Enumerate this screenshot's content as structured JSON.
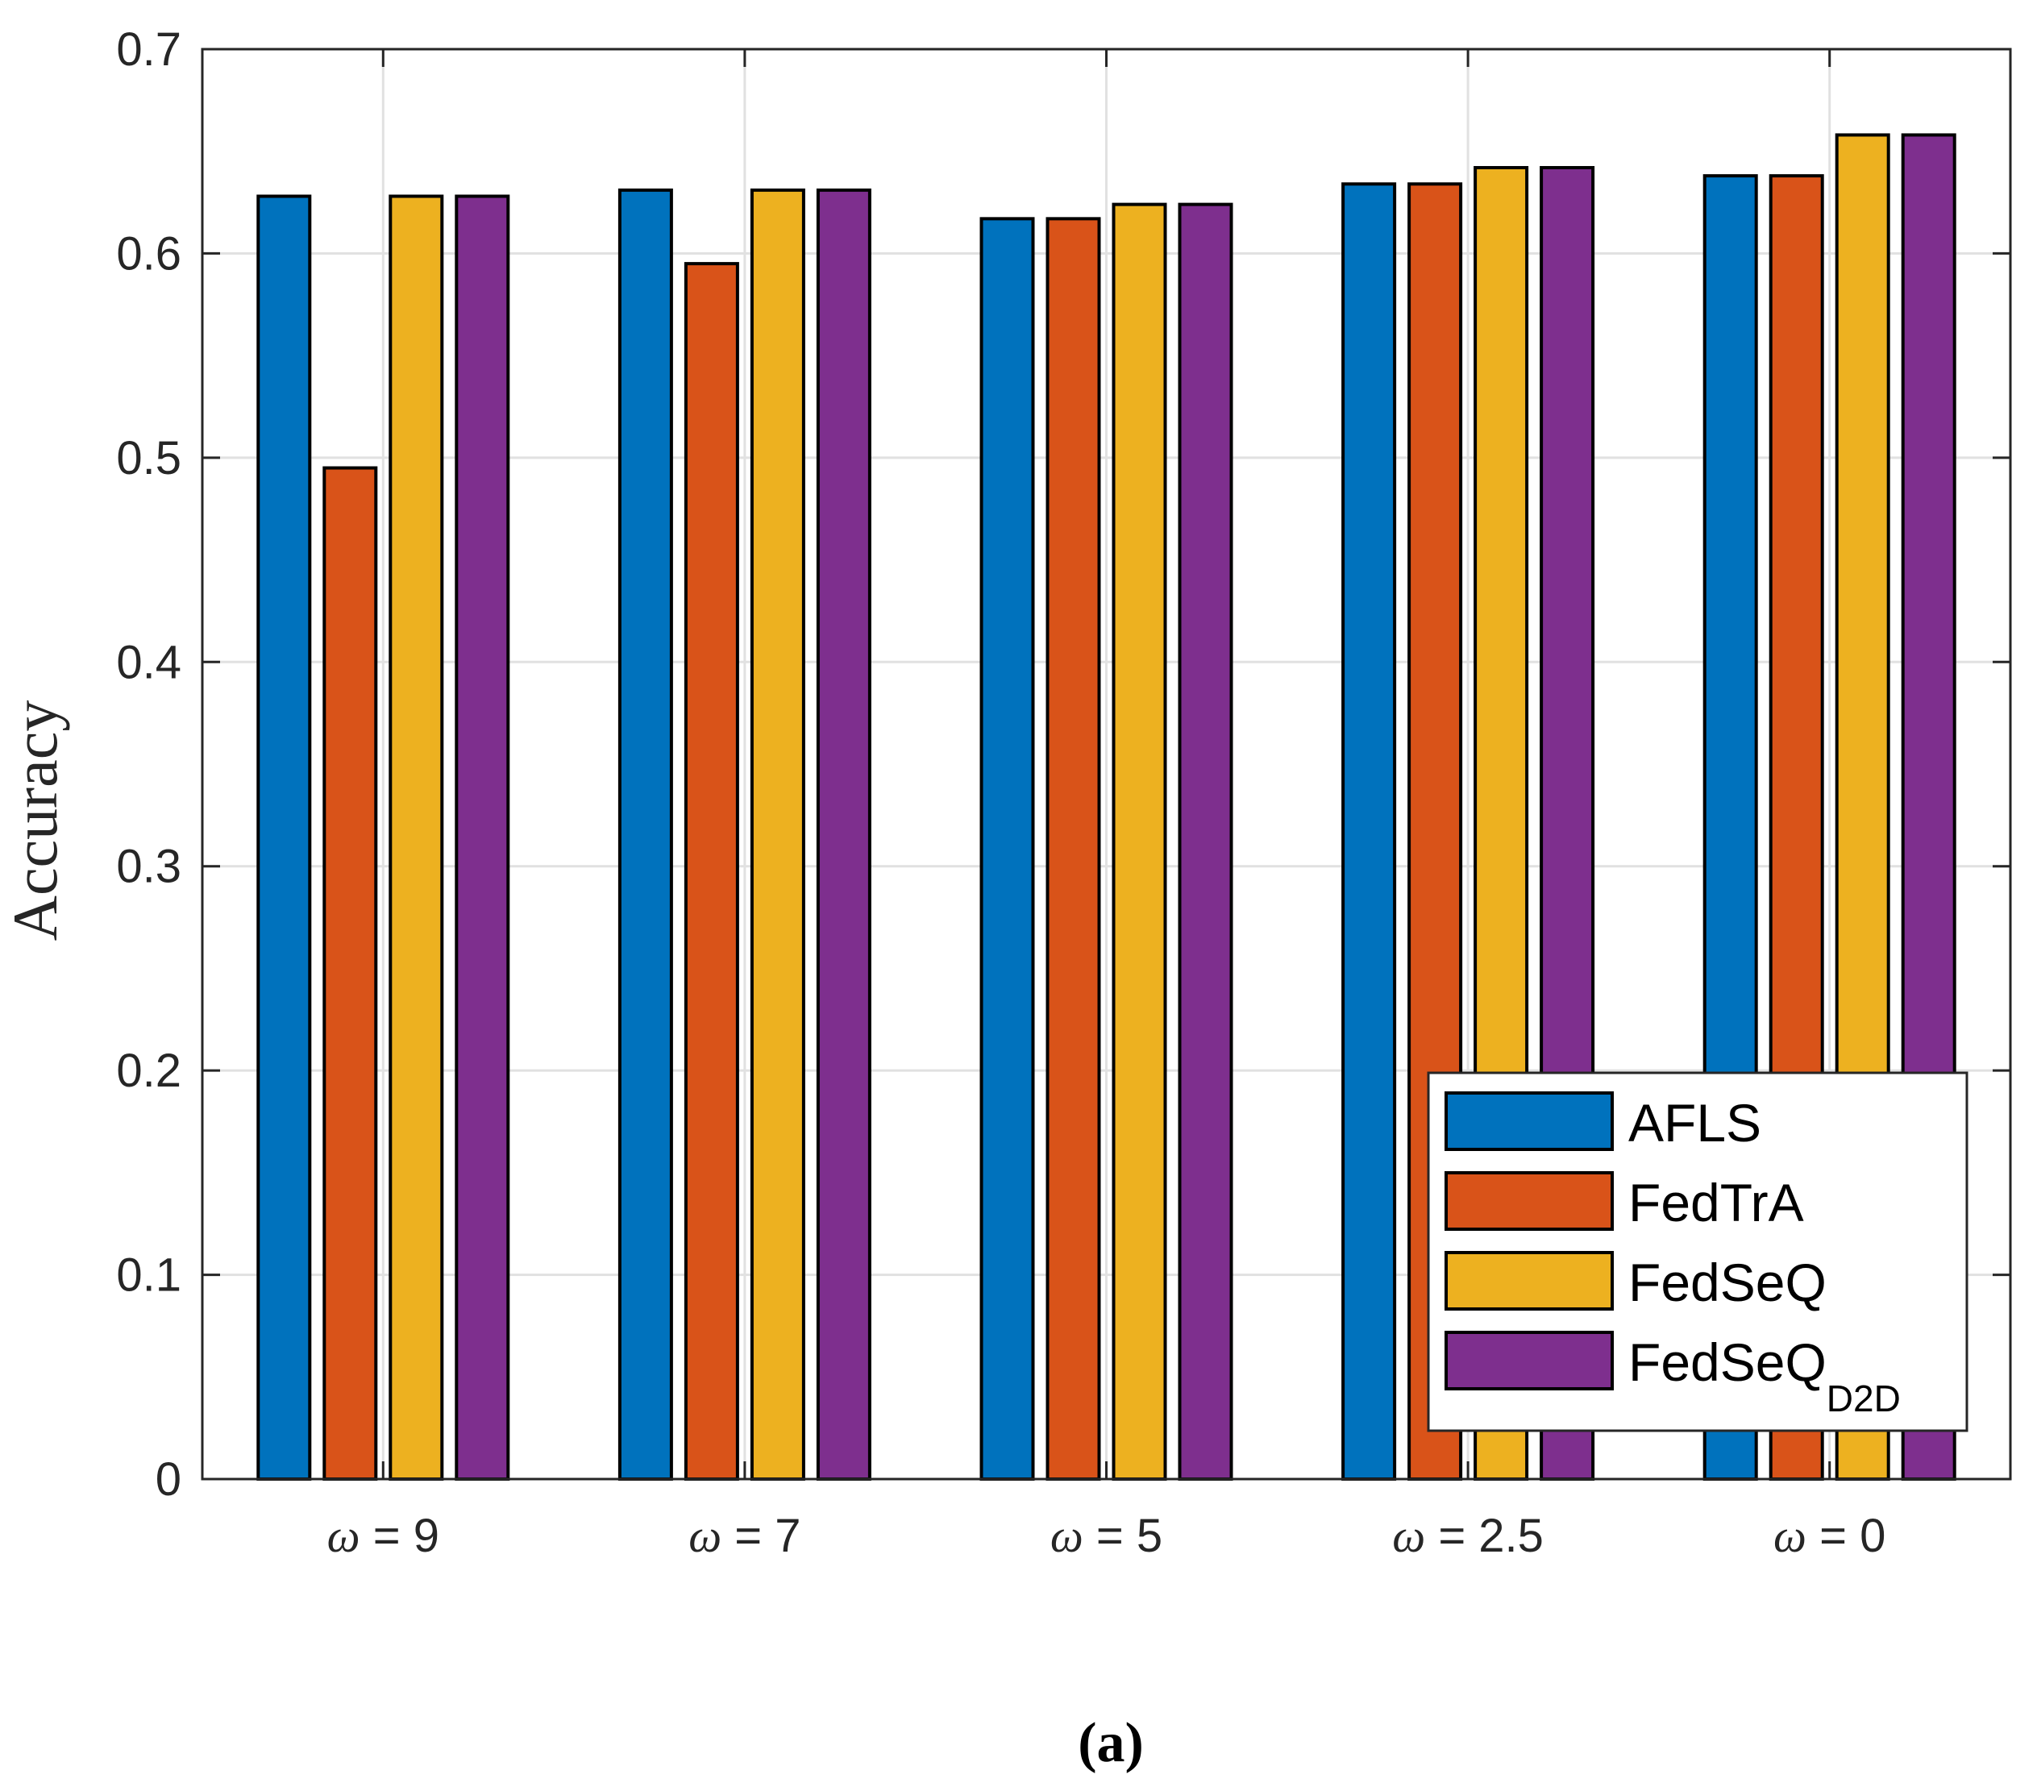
{
  "chart_data": {
    "type": "bar",
    "title": "",
    "xlabel": "",
    "ylabel": "Accuracy",
    "ylim": [
      0,
      0.7
    ],
    "yticks": [
      "0",
      "0.1",
      "0.2",
      "0.3",
      "0.4",
      "0.5",
      "0.6",
      "0.7"
    ],
    "grid": true,
    "legend_position": "bottom-right",
    "category_symbol": "ω",
    "categories": [
      "ω = 9",
      "ω = 7",
      "ω = 5",
      "ω = 2.5",
      "ω = 0"
    ],
    "category_values": [
      "= 9",
      "= 7",
      "= 5",
      "= 2.5",
      "= 0"
    ],
    "series": [
      {
        "name": "AFLS",
        "values": [
          0.628,
          0.631,
          0.617,
          0.634,
          0.638
        ]
      },
      {
        "name": "FedTrA",
        "values": [
          0.495,
          0.595,
          0.617,
          0.634,
          0.638
        ]
      },
      {
        "name": "FedSeQ",
        "values": [
          0.628,
          0.631,
          0.624,
          0.642,
          0.658
        ]
      },
      {
        "name": "FedSeQD2D",
        "name_base": "FedSeQ",
        "name_subscript": "D2D",
        "values": [
          0.628,
          0.631,
          0.624,
          0.642,
          0.658
        ]
      }
    ],
    "colors": [
      "#0072BD",
      "#D95319",
      "#EDB120",
      "#7E2F8E"
    ],
    "caption": "(a)"
  }
}
